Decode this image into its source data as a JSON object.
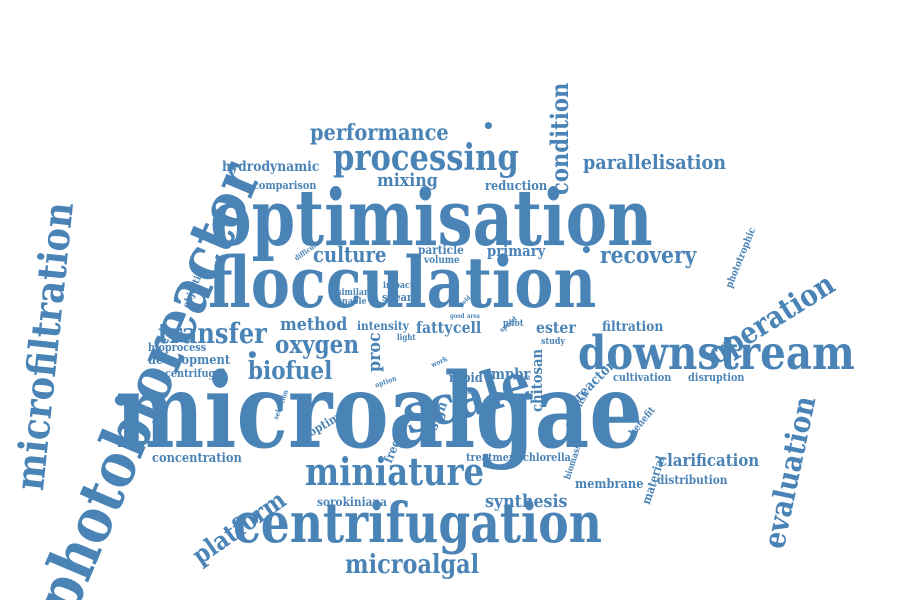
{
  "color": "#4a83b6",
  "words": [
    {
      "name": "microalgae",
      "text": "microalgae"
    },
    {
      "name": "optimisation",
      "text": "optimisation"
    },
    {
      "name": "flocculation",
      "text": "flocculation"
    },
    {
      "name": "centrifugation",
      "text": "centrifugation"
    },
    {
      "name": "photobioreactor",
      "text": "photobioreactor"
    },
    {
      "name": "downstream",
      "text": "downstream"
    },
    {
      "name": "scale",
      "text": "scale"
    },
    {
      "name": "miniature",
      "text": "miniature"
    },
    {
      "name": "microfiltration",
      "text": "microfiltration"
    },
    {
      "name": "processing",
      "text": "processing"
    },
    {
      "name": "operation",
      "text": "operation"
    },
    {
      "name": "evaluation",
      "text": "evaluation"
    },
    {
      "name": "performance",
      "text": "performance"
    },
    {
      "name": "condition",
      "text": "condition"
    },
    {
      "name": "parallelisation",
      "text": "parallelisation"
    },
    {
      "name": "transfer",
      "text": "transfer"
    },
    {
      "name": "oxygen",
      "text": "oxygen"
    },
    {
      "name": "biofuel",
      "text": "biofuel"
    },
    {
      "name": "culture",
      "text": "culture"
    },
    {
      "name": "recovery",
      "text": "recovery"
    },
    {
      "name": "platform",
      "text": "platform"
    },
    {
      "name": "microalgal",
      "text": "microalgal"
    },
    {
      "name": "mixing",
      "text": "mixing"
    },
    {
      "name": "method",
      "text": "method"
    },
    {
      "name": "synthesis",
      "text": "synthesis"
    },
    {
      "name": "clarification",
      "text": "clarification"
    },
    {
      "name": "hydrodynamic",
      "text": "hydrodynamic"
    },
    {
      "name": "comparison",
      "text": "comparison"
    },
    {
      "name": "reduction",
      "text": "reduction"
    },
    {
      "name": "primary",
      "text": "primary"
    },
    {
      "name": "particle",
      "text": "particle"
    },
    {
      "name": "volume",
      "text": "volume"
    },
    {
      "name": "intensity",
      "text": "intensity"
    },
    {
      "name": "fatty",
      "text": "fatty"
    },
    {
      "name": "cell",
      "text": "cell"
    },
    {
      "name": "ester",
      "text": "ester"
    },
    {
      "name": "filtration",
      "text": "filtration"
    },
    {
      "name": "proc",
      "text": "proc"
    },
    {
      "name": "bioprocess",
      "text": "bioprocess"
    },
    {
      "name": "development",
      "text": "development"
    },
    {
      "name": "centrifugal",
      "text": "centrifugal"
    },
    {
      "name": "concentration",
      "text": "concentration"
    },
    {
      "name": "sorokiniana",
      "text": "sorokiniana"
    },
    {
      "name": "treatment",
      "text": "treatment"
    },
    {
      "name": "chlorella",
      "text": "chlorella"
    },
    {
      "name": "membrane",
      "text": "membrane"
    },
    {
      "name": "distribution",
      "text": "distribution"
    },
    {
      "name": "cultivation",
      "text": "cultivation"
    },
    {
      "name": "disruption",
      "text": "disruption"
    },
    {
      "name": "mpbr",
      "text": "mpbr"
    },
    {
      "name": "rapid",
      "text": "rapid"
    },
    {
      "name": "chitosan",
      "text": "chitosan"
    },
    {
      "name": "reactor",
      "text": "reactor"
    },
    {
      "name": "shear",
      "text": "shear"
    },
    {
      "name": "impact",
      "text": "impact"
    },
    {
      "name": "similar",
      "text": "similar"
    },
    {
      "name": "enable",
      "text": "enable"
    },
    {
      "name": "pilot",
      "text": "pilot"
    },
    {
      "name": "study",
      "text": "study"
    },
    {
      "name": "design",
      "text": "design"
    },
    {
      "name": "frequency",
      "text": "frequency"
    },
    {
      "name": "optimal",
      "text": "optimal"
    },
    {
      "name": "selection",
      "text": "selection"
    },
    {
      "name": "objective",
      "text": "objective"
    },
    {
      "name": "difficult",
      "text": "difficult"
    },
    {
      "name": "light",
      "text": "light"
    },
    {
      "name": "option",
      "text": "option"
    },
    {
      "name": "range",
      "text": "range"
    },
    {
      "name": "establish",
      "text": "establish"
    },
    {
      "name": "benefit",
      "text": "benefit"
    },
    {
      "name": "biomass",
      "text": "biomass"
    },
    {
      "name": "material",
      "text": "material"
    },
    {
      "name": "phototrophic",
      "text": "phototrophic"
    },
    {
      "name": "speed",
      "text": "speed"
    },
    {
      "name": "good",
      "text": "good"
    },
    {
      "name": "area",
      "text": "area"
    },
    {
      "name": "work",
      "text": "work"
    },
    {
      "name": "result",
      "text": "result"
    },
    {
      "name": "yield",
      "text": "yield"
    },
    {
      "name": "dot1",
      "text": "•"
    },
    {
      "name": "dot2",
      "text": "•"
    },
    {
      "name": "dot3",
      "text": "•"
    },
    {
      "name": "dot4",
      "text": "•"
    }
  ]
}
